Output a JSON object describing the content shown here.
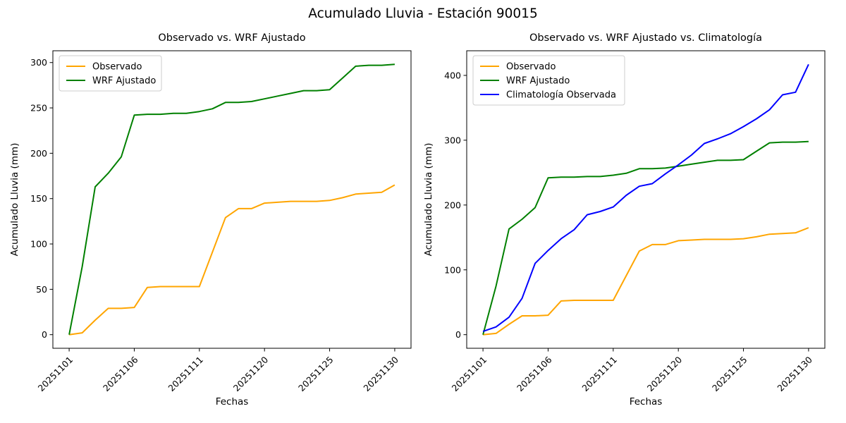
{
  "figure": {
    "suptitle": "Acumulado Lluvia - Estación 90015",
    "station_id": "90015"
  },
  "chart_data": [
    {
      "type": "line",
      "title": "Observado vs. WRF Ajustado",
      "xlabel": "Fechas",
      "ylabel": "Acumulado Lluvia (mm)",
      "x_unit": "day_index",
      "x": [
        0,
        1,
        2,
        3,
        4,
        5,
        6,
        7,
        8,
        9,
        10,
        11,
        12,
        13,
        14,
        15,
        16,
        17,
        18,
        19,
        20,
        21,
        22,
        23,
        24,
        25
      ],
      "xlim": [
        -1.25,
        26.25
      ],
      "ylim": [
        -15,
        313
      ],
      "yticks": [
        0,
        50,
        100,
        150,
        200,
        250,
        300
      ],
      "xticks": [
        {
          "pos": 0,
          "label": "20251101"
        },
        {
          "pos": 5,
          "label": "20251106"
        },
        {
          "pos": 10,
          "label": "20251111"
        },
        {
          "pos": 15,
          "label": "20251120"
        },
        {
          "pos": 20,
          "label": "20251125"
        },
        {
          "pos": 25,
          "label": "20251130"
        }
      ],
      "grid": false,
      "legend_position": "upper-left",
      "series": [
        {
          "name": "Observado",
          "color": "#FFA500",
          "values": [
            0,
            2,
            16,
            29,
            29,
            30,
            52,
            53,
            53,
            53,
            53,
            91,
            129,
            139,
            139,
            145,
            146,
            147,
            147,
            147,
            148,
            151,
            155,
            156,
            157,
            165
          ]
        },
        {
          "name": "WRF Ajustado",
          "color": "#008000",
          "values": [
            0,
            75,
            163,
            178,
            196,
            242,
            243,
            243,
            244,
            244,
            246,
            249,
            256,
            256,
            257,
            260,
            263,
            266,
            269,
            269,
            270,
            283,
            296,
            297,
            297,
            298
          ]
        }
      ]
    },
    {
      "type": "line",
      "title": "Observado vs. WRF Ajustado vs. Climatología",
      "xlabel": "Fechas",
      "ylabel": "Acumulado Lluvia (mm)",
      "x_unit": "day_index",
      "x": [
        0,
        1,
        2,
        3,
        4,
        5,
        6,
        7,
        8,
        9,
        10,
        11,
        12,
        13,
        14,
        15,
        16,
        17,
        18,
        19,
        20,
        21,
        22,
        23,
        24,
        25
      ],
      "xlim": [
        -1.25,
        26.25
      ],
      "ylim": [
        -21,
        438
      ],
      "yticks": [
        0,
        100,
        200,
        300,
        400
      ],
      "xticks": [
        {
          "pos": 0,
          "label": "20251101"
        },
        {
          "pos": 5,
          "label": "20251106"
        },
        {
          "pos": 10,
          "label": "20251111"
        },
        {
          "pos": 15,
          "label": "20251120"
        },
        {
          "pos": 20,
          "label": "20251125"
        },
        {
          "pos": 25,
          "label": "20251130"
        }
      ],
      "grid": false,
      "legend_position": "upper-left",
      "series": [
        {
          "name": "Observado",
          "color": "#FFA500",
          "values": [
            0,
            2,
            16,
            29,
            29,
            30,
            52,
            53,
            53,
            53,
            53,
            91,
            129,
            139,
            139,
            145,
            146,
            147,
            147,
            147,
            148,
            151,
            155,
            156,
            157,
            165
          ]
        },
        {
          "name": "WRF Ajustado",
          "color": "#008000",
          "values": [
            0,
            75,
            163,
            178,
            196,
            242,
            243,
            243,
            244,
            244,
            246,
            249,
            256,
            256,
            257,
            260,
            263,
            266,
            269,
            269,
            270,
            283,
            296,
            297,
            297,
            298
          ]
        },
        {
          "name": "Climatología Observada",
          "color": "#0000FF",
          "values": [
            5,
            12,
            27,
            56,
            110,
            130,
            148,
            162,
            185,
            190,
            197,
            215,
            229,
            233,
            248,
            262,
            277,
            295,
            302,
            310,
            321,
            333,
            347,
            370,
            374,
            417
          ]
        }
      ]
    }
  ]
}
